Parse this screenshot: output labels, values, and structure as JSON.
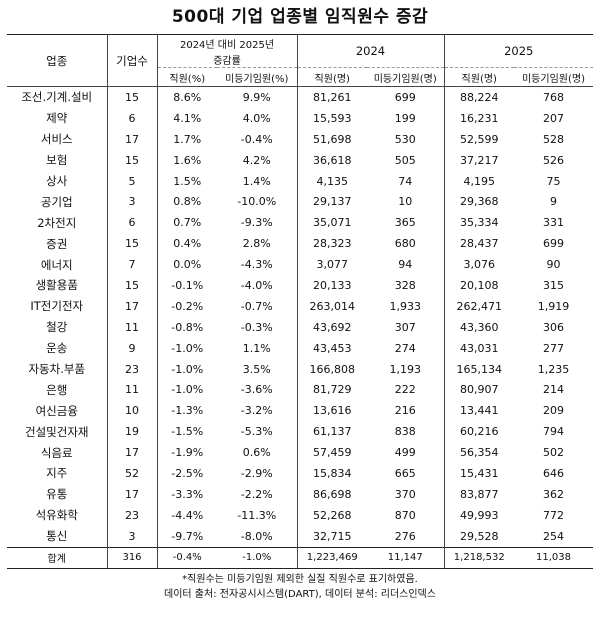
{
  "title": "500대 기업 업종별 임직원수 증감",
  "header": {
    "group_change_line1": "2024년 대비 2025년",
    "group_change_line2": "증감률",
    "group_2024": "2024",
    "group_2025": "2025",
    "col_industry": "업종",
    "col_companies": "기업수",
    "col_emp_pct": "직원(%)",
    "col_exec_pct": "미등기임원(%)",
    "col_emp_2024": "직원(명)",
    "col_exec_2024": "미등기임원(명)",
    "col_emp_2025": "직원(명)",
    "col_exec_2025": "미등기임원(명)"
  },
  "rows": [
    {
      "industry": "조선.기계.설비",
      "companies": "15",
      "emp_pct": "8.6%",
      "exec_pct": "9.9%",
      "emp_2024": "81,261",
      "exec_2024": "699",
      "emp_2025": "88,224",
      "exec_2025": "768"
    },
    {
      "industry": "제약",
      "companies": "6",
      "emp_pct": "4.1%",
      "exec_pct": "4.0%",
      "emp_2024": "15,593",
      "exec_2024": "199",
      "emp_2025": "16,231",
      "exec_2025": "207"
    },
    {
      "industry": "서비스",
      "companies": "17",
      "emp_pct": "1.7%",
      "exec_pct": "-0.4%",
      "emp_2024": "51,698",
      "exec_2024": "530",
      "emp_2025": "52,599",
      "exec_2025": "528"
    },
    {
      "industry": "보험",
      "companies": "15",
      "emp_pct": "1.6%",
      "exec_pct": "4.2%",
      "emp_2024": "36,618",
      "exec_2024": "505",
      "emp_2025": "37,217",
      "exec_2025": "526"
    },
    {
      "industry": "상사",
      "companies": "5",
      "emp_pct": "1.5%",
      "exec_pct": "1.4%",
      "emp_2024": "4,135",
      "exec_2024": "74",
      "emp_2025": "4,195",
      "exec_2025": "75"
    },
    {
      "industry": "공기업",
      "companies": "3",
      "emp_pct": "0.8%",
      "exec_pct": "-10.0%",
      "emp_2024": "29,137",
      "exec_2024": "10",
      "emp_2025": "29,368",
      "exec_2025": "9"
    },
    {
      "industry": "2차전지",
      "companies": "6",
      "emp_pct": "0.7%",
      "exec_pct": "-9.3%",
      "emp_2024": "35,071",
      "exec_2024": "365",
      "emp_2025": "35,334",
      "exec_2025": "331"
    },
    {
      "industry": "증권",
      "companies": "15",
      "emp_pct": "0.4%",
      "exec_pct": "2.8%",
      "emp_2024": "28,323",
      "exec_2024": "680",
      "emp_2025": "28,437",
      "exec_2025": "699"
    },
    {
      "industry": "에너지",
      "companies": "7",
      "emp_pct": "0.0%",
      "exec_pct": "-4.3%",
      "emp_2024": "3,077",
      "exec_2024": "94",
      "emp_2025": "3,076",
      "exec_2025": "90"
    },
    {
      "industry": "생활용품",
      "companies": "15",
      "emp_pct": "-0.1%",
      "exec_pct": "-4.0%",
      "emp_2024": "20,133",
      "exec_2024": "328",
      "emp_2025": "20,108",
      "exec_2025": "315"
    },
    {
      "industry": "IT전기전자",
      "companies": "17",
      "emp_pct": "-0.2%",
      "exec_pct": "-0.7%",
      "emp_2024": "263,014",
      "exec_2024": "1,933",
      "emp_2025": "262,471",
      "exec_2025": "1,919"
    },
    {
      "industry": "철강",
      "companies": "11",
      "emp_pct": "-0.8%",
      "exec_pct": "-0.3%",
      "emp_2024": "43,692",
      "exec_2024": "307",
      "emp_2025": "43,360",
      "exec_2025": "306"
    },
    {
      "industry": "운송",
      "companies": "9",
      "emp_pct": "-1.0%",
      "exec_pct": "1.1%",
      "emp_2024": "43,453",
      "exec_2024": "274",
      "emp_2025": "43,031",
      "exec_2025": "277"
    },
    {
      "industry": "자동차.부품",
      "companies": "23",
      "emp_pct": "-1.0%",
      "exec_pct": "3.5%",
      "emp_2024": "166,808",
      "exec_2024": "1,193",
      "emp_2025": "165,134",
      "exec_2025": "1,235"
    },
    {
      "industry": "은행",
      "companies": "11",
      "emp_pct": "-1.0%",
      "exec_pct": "-3.6%",
      "emp_2024": "81,729",
      "exec_2024": "222",
      "emp_2025": "80,907",
      "exec_2025": "214"
    },
    {
      "industry": "여신금융",
      "companies": "10",
      "emp_pct": "-1.3%",
      "exec_pct": "-3.2%",
      "emp_2024": "13,616",
      "exec_2024": "216",
      "emp_2025": "13,441",
      "exec_2025": "209"
    },
    {
      "industry": "건설및건자재",
      "companies": "19",
      "emp_pct": "-1.5%",
      "exec_pct": "-5.3%",
      "emp_2024": "61,137",
      "exec_2024": "838",
      "emp_2025": "60,216",
      "exec_2025": "794"
    },
    {
      "industry": "식음료",
      "companies": "17",
      "emp_pct": "-1.9%",
      "exec_pct": "0.6%",
      "emp_2024": "57,459",
      "exec_2024": "499",
      "emp_2025": "56,354",
      "exec_2025": "502"
    },
    {
      "industry": "지주",
      "companies": "52",
      "emp_pct": "-2.5%",
      "exec_pct": "-2.9%",
      "emp_2024": "15,834",
      "exec_2024": "665",
      "emp_2025": "15,431",
      "exec_2025": "646"
    },
    {
      "industry": "유통",
      "companies": "17",
      "emp_pct": "-3.3%",
      "exec_pct": "-2.2%",
      "emp_2024": "86,698",
      "exec_2024": "370",
      "emp_2025": "83,877",
      "exec_2025": "362"
    },
    {
      "industry": "석유화학",
      "companies": "23",
      "emp_pct": "-4.4%",
      "exec_pct": "-11.3%",
      "emp_2024": "52,268",
      "exec_2024": "870",
      "emp_2025": "49,993",
      "exec_2025": "772"
    },
    {
      "industry": "통신",
      "companies": "3",
      "emp_pct": "-9.7%",
      "exec_pct": "-8.0%",
      "emp_2024": "32,715",
      "exec_2024": "276",
      "emp_2025": "29,528",
      "exec_2025": "254"
    }
  ],
  "total": {
    "industry": "합계",
    "companies": "316",
    "emp_pct": "-0.4%",
    "exec_pct": "-1.0%",
    "emp_2024": "1,223,469",
    "exec_2024": "11,147",
    "emp_2025": "1,218,532",
    "exec_2025": "11,038"
  },
  "footnote_1": "*직원수는 미등기임원 제외한 실질 직원수로 표기하였음.",
  "footnote_2": "데이터 출처: 전자공시시스템(DART), 데이터 분석: 리더스인덱스"
}
